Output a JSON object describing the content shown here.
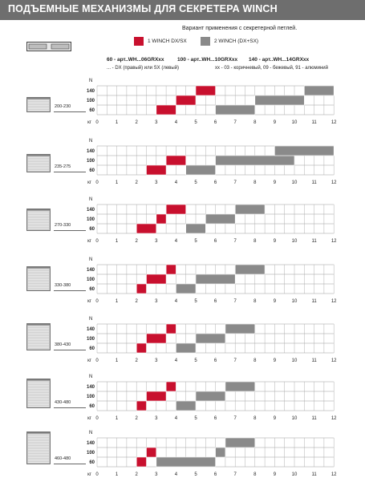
{
  "header": {
    "title": "ПОДЪЕМНЫЕ МЕХАНИЗМЫ ДЛЯ СЕКРЕТЕРА WINCH"
  },
  "subtitle": "Вариант применения с секретерной петлей.",
  "legend": {
    "red_label": "1 WINCH DX/SX",
    "gray_label": "2 WINCH (DX+SX)",
    "red_color": "#c8102e",
    "gray_color": "#8a8a8a"
  },
  "articles": {
    "a60": "60 - арт..WH...06GRXxx",
    "a100": "100 - арт..WH...10GRXxx",
    "a140": "140 - арт..WH...14GRXxx"
  },
  "notes": {
    "dx_sx": "... - DX (правый) или SX (левый)",
    "colors": "хх - 03 - коричневый, 09 - бежевый, 91 - алюминий"
  },
  "axis": {
    "n_label": "N",
    "kg_label": "кг",
    "n_levels": [
      "140",
      "100",
      "60"
    ],
    "kg_ticks": [
      "0",
      "1",
      "2",
      "3",
      "4",
      "5",
      "6",
      "7",
      "8",
      "9",
      "10",
      "11",
      "12"
    ]
  },
  "chart_data": {
    "type": "table",
    "y_unit": "N",
    "x_unit": "кг",
    "x_range": [
      0,
      12
    ],
    "rows": [
      {
        "range": "200-230",
        "red": {
          "60": [
            3,
            4
          ],
          "100": [
            4,
            5
          ],
          "140": [
            5,
            6
          ]
        },
        "gray": {
          "60": [
            6,
            8
          ],
          "100": [
            8,
            10.5
          ],
          "140": [
            10.5,
            12
          ]
        }
      },
      {
        "range": "235-275",
        "red": {
          "60": [
            2.5,
            3.5
          ],
          "100": [
            3.5,
            4.5
          ]
        },
        "gray": {
          "60": [
            4.5,
            6
          ],
          "100": [
            6,
            10
          ],
          "140": [
            9,
            12
          ]
        }
      },
      {
        "range": "270-330",
        "red": {
          "60": [
            2,
            3
          ],
          "100": [
            3,
            3.5
          ],
          "140": [
            3.5,
            4.5
          ]
        },
        "gray": {
          "60": [
            4.5,
            5.5
          ],
          "100": [
            5.5,
            7
          ],
          "140": [
            7,
            8.5
          ]
        }
      },
      {
        "range": "330-380",
        "red": {
          "60": [
            2,
            2.5
          ],
          "100": [
            2.5,
            3.5
          ],
          "140": [
            3.5,
            4
          ]
        },
        "gray": {
          "60": [
            4,
            5
          ],
          "100": [
            5,
            7
          ],
          "140": [
            7,
            8.5
          ]
        }
      },
      {
        "range": "380-430",
        "red": {
          "60": [
            2,
            2.5
          ],
          "100": [
            2.5,
            3.5
          ],
          "140": [
            3.5,
            4
          ]
        },
        "gray": {
          "60": [
            4,
            5
          ],
          "100": [
            5,
            6.5
          ],
          "140": [
            6.5,
            8
          ]
        }
      },
      {
        "range": "430-480",
        "red": {
          "60": [
            2,
            2.5
          ],
          "100": [
            2.5,
            3.5
          ],
          "140": [
            3.5,
            4
          ]
        },
        "gray": {
          "60": [
            4,
            5
          ],
          "100": [
            5,
            6.5
          ],
          "140": [
            6.5,
            8
          ]
        }
      },
      {
        "range": "460-480",
        "red": {
          "60": [
            2,
            2.5
          ],
          "100": [
            2.5,
            3
          ]
        },
        "gray": {
          "60": [
            3,
            6
          ],
          "100": [
            6,
            6.5
          ],
          "140": [
            6.5,
            8
          ]
        }
      }
    ]
  }
}
